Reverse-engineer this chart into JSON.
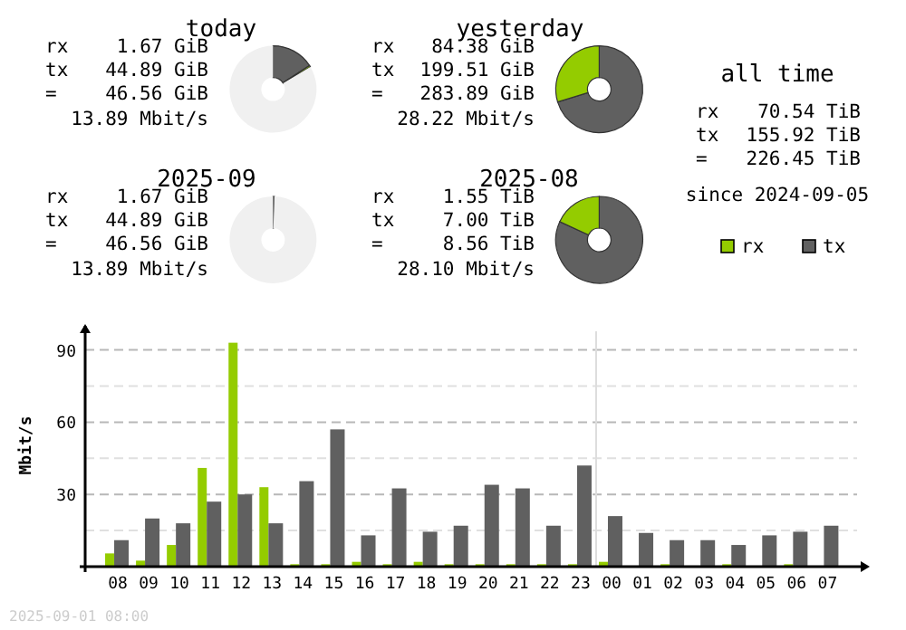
{
  "chart_data": [
    {
      "type": "donut",
      "title": "today",
      "categories": [
        null,
        null,
        null
      ],
      "values": [
        15.81,
        0.59,
        83.6
      ],
      "colors": [
        "#606060",
        "#94cc00",
        "#f0f0f0"
      ],
      "annotations": [
        "rx",
        "1.67 GiB",
        "tx",
        "44.89 GiB",
        "=",
        "46.56 GiB",
        "13.89 Mbit/s"
      ]
    },
    {
      "type": "donut",
      "title": "yesterday",
      "categories": [
        null,
        null
      ],
      "values": [
        70.28,
        29.72
      ],
      "colors": [
        "#606060",
        "#94cc00"
      ],
      "annotations": [
        "rx",
        "84.38 GiB",
        "tx",
        "199.51 GiB",
        "=",
        "283.89 GiB",
        "28.22 Mbit/s"
      ]
    },
    {
      "type": "donut",
      "title": "2025-09",
      "categories": [
        null,
        null
      ],
      "values": [
        0.5,
        99.5
      ],
      "colors": [
        "#606060",
        "#f0f0f0"
      ],
      "annotations": [
        "rx",
        "1.67 GiB",
        "tx",
        "44.89 GiB",
        "=",
        "46.56 GiB",
        "13.89 Mbit/s"
      ]
    },
    {
      "type": "donut",
      "title": "2025-08",
      "categories": [
        null,
        null
      ],
      "values": [
        81.87,
        18.13
      ],
      "colors": [
        "#606060",
        "#94cc00"
      ],
      "annotations": [
        "rx",
        "1.55 TiB",
        "tx",
        "7.00 TiB",
        "=",
        "8.56 TiB",
        "28.10 Mbit/s"
      ]
    },
    {
      "type": "other",
      "title": "all time",
      "annotations": [
        "rx",
        "70.54 TiB",
        "tx",
        "155.92 TiB",
        "=",
        "226.45 TiB",
        "since 2024-09-05"
      ]
    },
    {
      "type": "bar",
      "ylabel": "Mbit/s",
      "categories": [
        "08",
        "09",
        "10",
        "11",
        "12",
        "13",
        "14",
        "15",
        "16",
        "17",
        "18",
        "19",
        "20",
        "21",
        "22",
        "23",
        "00",
        "01",
        "02",
        "03",
        "04",
        "05",
        "06",
        "07"
      ],
      "series": [
        {
          "name": "rx",
          "color": "#94cc00",
          "values": [
            5.5,
            2.5,
            9,
            41,
            93,
            33,
            1,
            1,
            2,
            1,
            2,
            1,
            1,
            1,
            1,
            1,
            2,
            0,
            1,
            0,
            1,
            0,
            1,
            0
          ]
        },
        {
          "name": "tx",
          "color": "#606060",
          "values": [
            11,
            20,
            18,
            27,
            30,
            18,
            35.5,
            57,
            13,
            32.5,
            14.5,
            17,
            34,
            32.5,
            17,
            42,
            21,
            14,
            11,
            11,
            9,
            13,
            14.5,
            17
          ]
        }
      ],
      "ylim": [
        0,
        100
      ],
      "yticks": [
        {
          "value": 15,
          "label": null
        },
        30,
        {
          "value": 45,
          "label": null
        },
        60,
        {
          "value": 75,
          "label": null
        },
        90
      ],
      "grid": "y",
      "legend": "top right",
      "ref_lines": [
        {
          "axis": "x",
          "value": "00",
          "color": "#dddddd"
        }
      ],
      "annotations": [
        "2025-09-01 08:00"
      ]
    }
  ]
}
